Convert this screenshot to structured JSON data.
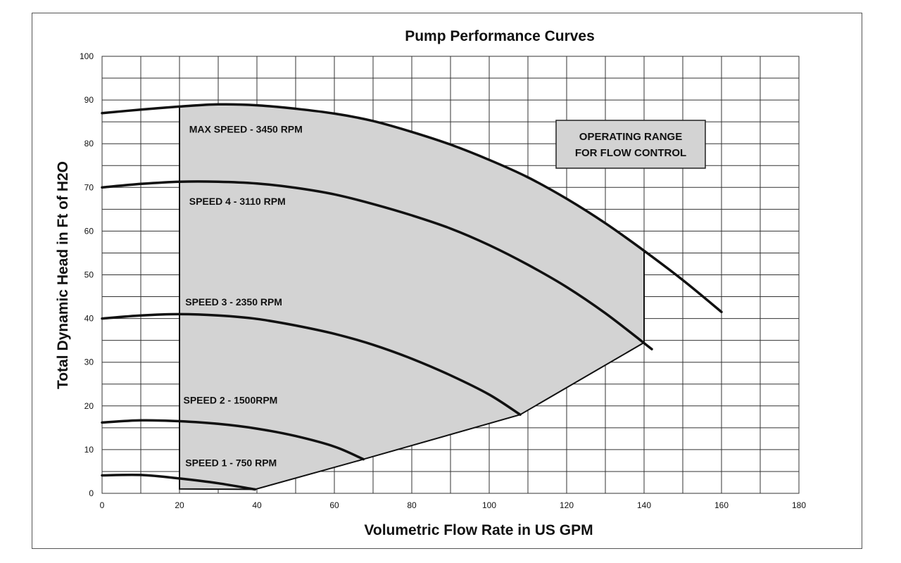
{
  "chart_data": {
    "type": "line",
    "title": "Pump Performance Curves",
    "xlabel": "Volumetric Flow Rate in US GPM",
    "ylabel": "Total Dynamic Head in Ft of H2O",
    "xlim": [
      0,
      180
    ],
    "ylim": [
      0,
      100
    ],
    "xticks": [
      0,
      20,
      40,
      60,
      80,
      100,
      120,
      140,
      160,
      180
    ],
    "yticks": [
      0,
      10,
      20,
      30,
      40,
      50,
      60,
      70,
      80,
      90,
      100
    ],
    "grid": true,
    "series": [
      {
        "name": "MAX SPEED - 3450 RPM",
        "x": [
          0,
          10,
          20,
          30,
          40,
          50,
          60,
          70,
          80,
          90,
          100,
          110,
          120,
          130,
          140,
          150,
          160
        ],
        "y": [
          87,
          87.8,
          88.5,
          89,
          88.8,
          88.0,
          86.9,
          85.2,
          82.7,
          79.8,
          76.3,
          72.3,
          67.4,
          61.8,
          55.5,
          48.8,
          41.5
        ]
      },
      {
        "name": "SPEED 4 - 3110 RPM",
        "x": [
          0,
          10,
          20,
          30,
          40,
          50,
          60,
          70,
          80,
          90,
          100,
          110,
          120,
          130,
          142
        ],
        "y": [
          70,
          70.8,
          71.3,
          71.3,
          70.9,
          69.9,
          68.4,
          66.2,
          63.6,
          60.6,
          56.8,
          52.3,
          47.2,
          41.2,
          33
        ]
      },
      {
        "name": "SPEED 3 - 2350 RPM",
        "x": [
          0,
          10,
          20,
          30,
          40,
          50,
          60,
          70,
          80,
          90,
          100,
          108
        ],
        "y": [
          40,
          40.7,
          41,
          40.7,
          39.9,
          38.4,
          36.5,
          34,
          30.8,
          27,
          22.6,
          18
        ]
      },
      {
        "name": "SPEED 2 - 1500RPM",
        "x": [
          0,
          10,
          20,
          30,
          40,
          50,
          60,
          67.5
        ],
        "y": [
          16.2,
          16.7,
          16.5,
          15.9,
          14.8,
          13.1,
          10.7,
          7.8
        ]
      },
      {
        "name": "SPEED 1 - 750 RPM",
        "x": [
          0,
          10,
          20,
          30,
          39.5
        ],
        "y": [
          4.1,
          4.2,
          3.4,
          2.3,
          0.9
        ]
      }
    ],
    "operating_region": {
      "label_line1": "OPERATING RANGE",
      "label_line2": "FOR FLOW CONTROL",
      "fill": "#d3d3d3",
      "boundary": [
        [
          20,
          88.5
        ],
        [
          30,
          89
        ],
        [
          40,
          88.8
        ],
        [
          50,
          88.0
        ],
        [
          60,
          86.9
        ],
        [
          70,
          85.2
        ],
        [
          80,
          82.7
        ],
        [
          90,
          79.8
        ],
        [
          100,
          76.3
        ],
        [
          110,
          72.3
        ],
        [
          120,
          67.4
        ],
        [
          130,
          61.8
        ],
        [
          140,
          55.5
        ],
        [
          140,
          34.5
        ],
        [
          108,
          18
        ],
        [
          67.5,
          7.8
        ],
        [
          39.5,
          0.9
        ],
        [
          20,
          1
        ]
      ]
    }
  },
  "colors": {
    "curve": "#111111",
    "grid": "#333333",
    "region_fill": "#d3d3d3",
    "box_fill": "#d3d3d3"
  }
}
